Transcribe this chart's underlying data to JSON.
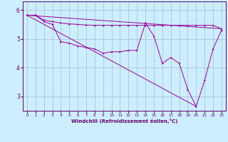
{
  "title": "",
  "xlabel": "Windchill (Refroidissement éolien,°C)",
  "bg_color": "#cceeff",
  "line_color": "#990099",
  "spine_color": "#660066",
  "grid_color": "#aabbcc",
  "xlim": [
    -0.5,
    23.5
  ],
  "ylim": [
    2.5,
    6.3
  ],
  "yticks": [
    3,
    4,
    5,
    6
  ],
  "xticks": [
    0,
    1,
    2,
    3,
    4,
    5,
    6,
    7,
    8,
    9,
    10,
    11,
    12,
    13,
    14,
    15,
    16,
    17,
    18,
    19,
    20,
    21,
    22,
    23
  ],
  "line1_x": [
    0,
    1,
    2,
    3,
    4,
    5,
    6,
    7,
    8,
    9,
    10,
    11,
    12,
    13,
    14,
    15,
    16,
    17,
    18,
    19,
    20,
    21,
    22,
    23
  ],
  "line1_y": [
    5.82,
    5.82,
    5.65,
    5.6,
    5.55,
    5.52,
    5.5,
    5.48,
    5.47,
    5.47,
    5.47,
    5.47,
    5.47,
    5.47,
    5.47,
    5.47,
    5.47,
    5.47,
    5.47,
    5.47,
    5.47,
    5.47,
    5.47,
    5.35
  ],
  "line2_x": [
    0,
    1,
    2,
    3,
    4,
    5,
    6,
    7,
    8,
    9,
    10,
    11,
    12,
    13,
    14,
    15,
    16,
    17,
    18,
    19,
    20,
    21,
    22,
    23
  ],
  "line2_y": [
    5.82,
    5.82,
    5.6,
    5.5,
    4.9,
    4.85,
    4.75,
    4.7,
    4.65,
    4.5,
    4.55,
    4.55,
    4.6,
    4.6,
    5.55,
    5.1,
    4.15,
    4.35,
    4.15,
    3.25,
    2.65,
    3.55,
    4.65,
    5.3
  ],
  "line3_x": [
    0,
    23
  ],
  "line3_y": [
    5.82,
    5.35
  ],
  "line4_x": [
    0,
    20
  ],
  "line4_y": [
    5.82,
    2.65
  ]
}
